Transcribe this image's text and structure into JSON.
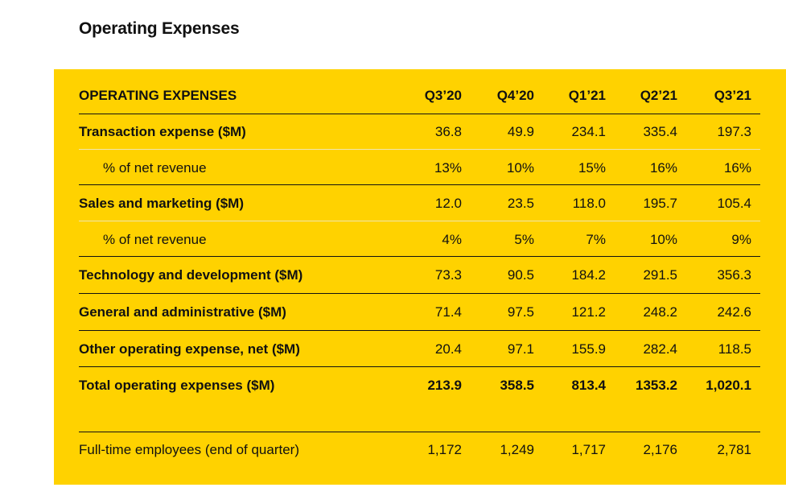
{
  "heading": "Operating Expenses",
  "table": {
    "header": {
      "label": "OPERATING EXPENSES",
      "columns": [
        "Q3’20",
        "Q4’20",
        "Q1’21",
        "Q2’21",
        "Q3’21"
      ]
    },
    "rows": [
      {
        "label": "Transaction expense ($M)",
        "values": [
          "36.8",
          "49.9",
          "234.1",
          "335.4",
          "197.3"
        ]
      },
      {
        "label": "% of net revenue",
        "values": [
          "13%",
          "10%",
          "15%",
          "16%",
          "16%"
        ]
      },
      {
        "label": "Sales and marketing ($M)",
        "values": [
          "12.0",
          "23.5",
          "118.0",
          "195.7",
          "105.4"
        ]
      },
      {
        "label": "% of net revenue",
        "values": [
          "4%",
          "5%",
          "7%",
          "10%",
          "9%"
        ]
      },
      {
        "label": "Technology and development ($M)",
        "values": [
          "73.3",
          "90.5",
          "184.2",
          "291.5",
          "356.3"
        ]
      },
      {
        "label": "General and administrative ($M)",
        "values": [
          "71.4",
          "97.5",
          "121.2",
          "248.2",
          "242.6"
        ]
      },
      {
        "label": "Other operating expense, net ($M)",
        "values": [
          "20.4",
          "97.1",
          "155.9",
          "282.4",
          "118.5"
        ]
      },
      {
        "label": "Total operating expenses ($M)",
        "values": [
          "213.9",
          "358.5",
          "813.4",
          "1353.2",
          "1,020.1"
        ]
      },
      {
        "label": "Full-time employees (end of quarter)",
        "values": [
          "1,172",
          "1,249",
          "1,717",
          "2,176",
          "2,781"
        ]
      }
    ]
  },
  "colors": {
    "panel_background": "#FFD200",
    "text": "#111111",
    "page_background": "#ffffff"
  }
}
